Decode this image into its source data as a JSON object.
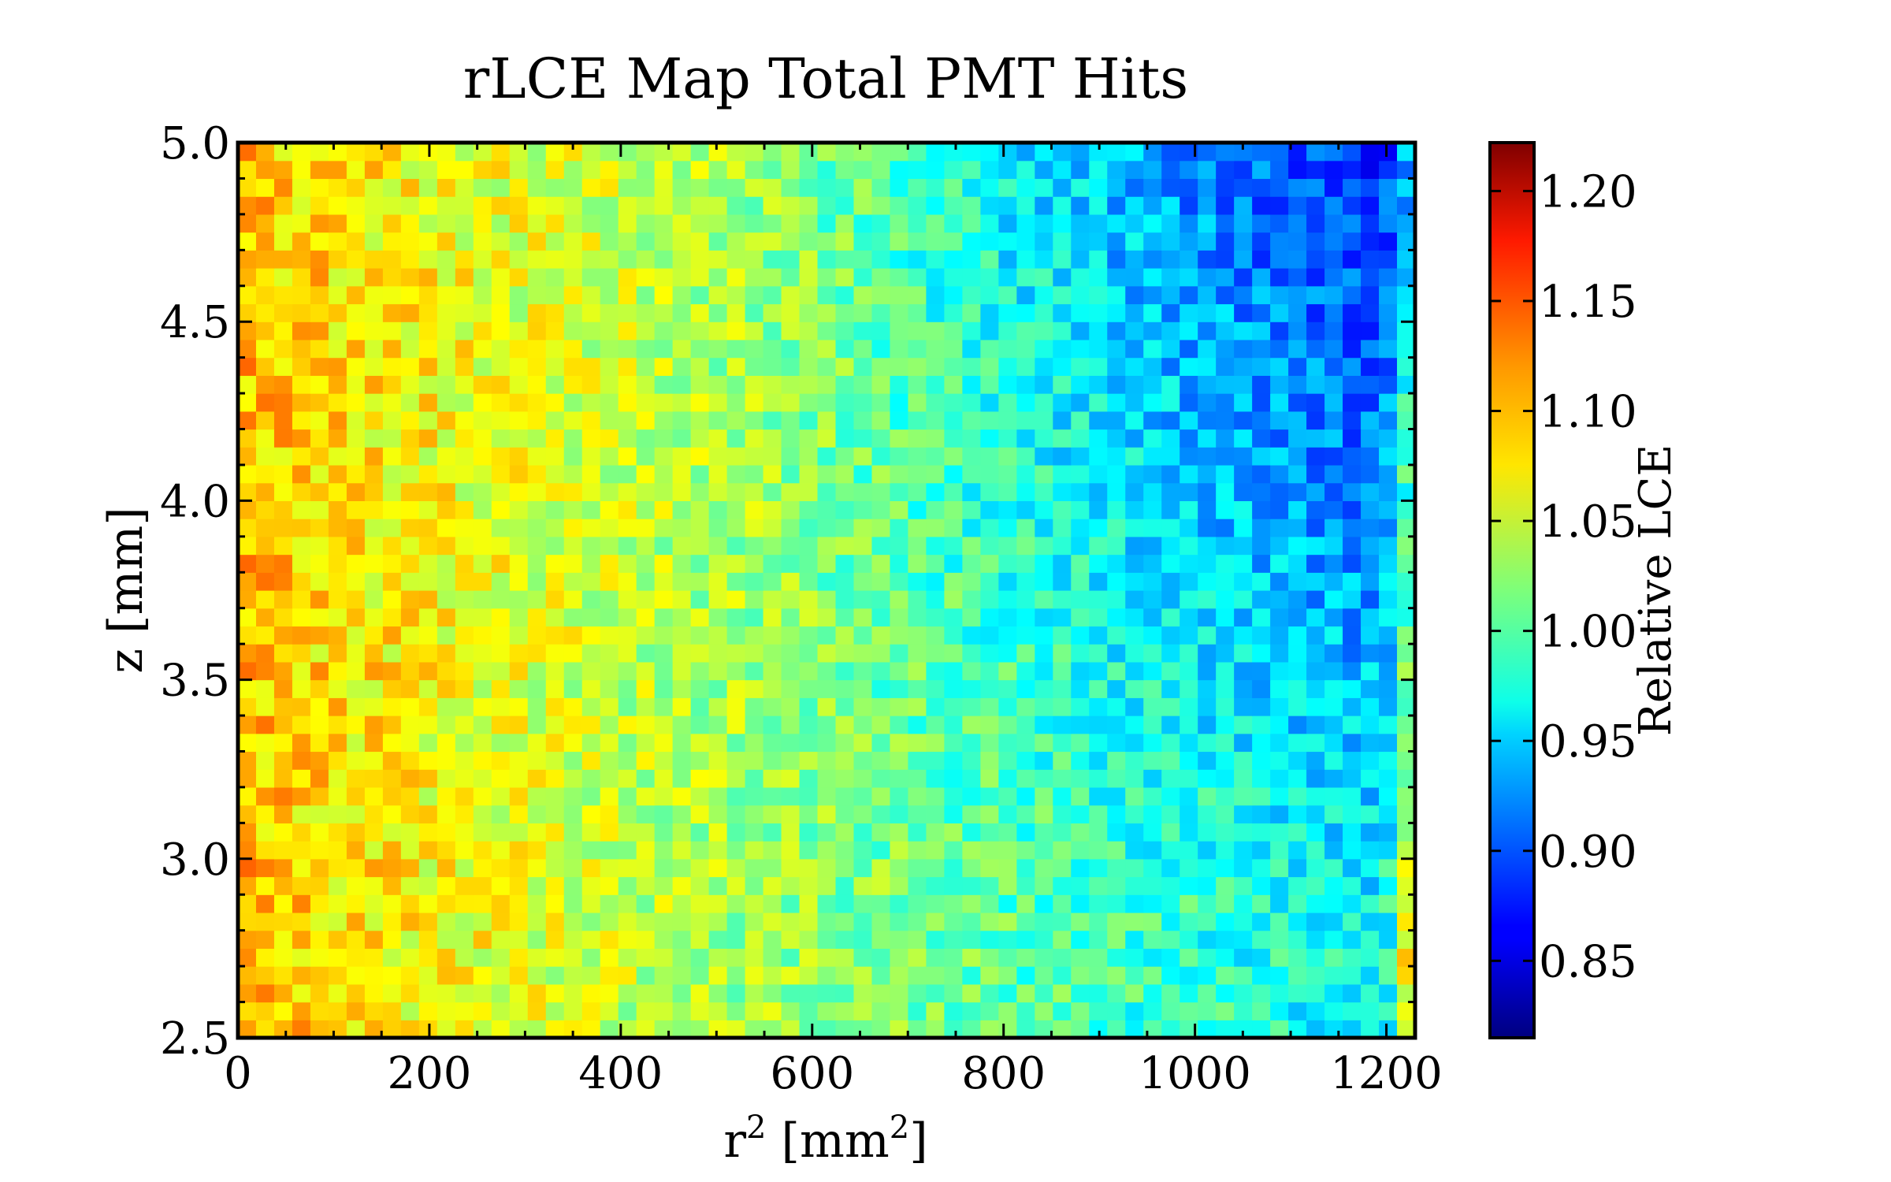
{
  "chart_data": {
    "type": "heatmap",
    "title": "rLCE Map Total PMT Hits",
    "xlabel_main": "r",
    "xlabel_sup": "2",
    "xlabel_unit": " [mm",
    "xlabel_unit_sup": "2",
    "xlabel_close": "]",
    "ylabel": "z [mm]",
    "colorbar_label": "Relative LCE",
    "xlim": [
      0,
      1230
    ],
    "ylim": [
      2.5,
      5.0
    ],
    "x_ticks": [
      "0",
      "200",
      "400",
      "600",
      "800",
      "1000",
      "1200"
    ],
    "x_tick_values": [
      0,
      200,
      400,
      600,
      800,
      1000,
      1200
    ],
    "y_ticks": [
      "2.5",
      "3.0",
      "3.5",
      "4.0",
      "4.5",
      "5.0"
    ],
    "y_tick_values": [
      2.5,
      3.0,
      3.5,
      4.0,
      4.5,
      5.0
    ],
    "colorbar_ticks": [
      "0.85",
      "0.90",
      "0.95",
      "1.00",
      "1.05",
      "1.10",
      "1.15",
      "1.20"
    ],
    "colorbar_tick_values": [
      0.85,
      0.9,
      0.95,
      1.0,
      1.05,
      1.1,
      1.15,
      1.2
    ],
    "clim": [
      0.815,
      1.222
    ],
    "colormap": "jet",
    "grid": false,
    "bins_x": 65,
    "bins_y": 50,
    "value_model": {
      "left_edge_value": 1.1,
      "right_edge_value": 0.965,
      "top_right_min_value": 0.87,
      "noise_amplitude": 0.035
    }
  }
}
